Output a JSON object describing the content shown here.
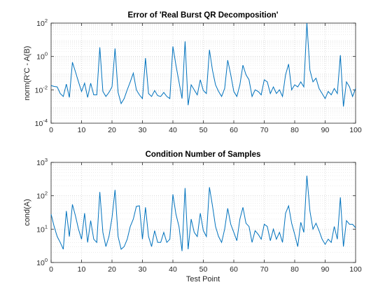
{
  "figure": {
    "background": "#ffffff",
    "line_color": "#0072BD"
  },
  "chart_data": [
    {
      "type": "line",
      "title": "Error of 'Real Burst QR Decomposition'",
      "xlabel": "",
      "ylabel": "norm(R'C - A(B)",
      "xlim": [
        0,
        100
      ],
      "ylim": [
        0.0001,
        100
      ],
      "yscale": "log",
      "grid": true,
      "x_ticks": [
        "0",
        "10",
        "20",
        "30",
        "40",
        "50",
        "60",
        "70",
        "80",
        "90",
        "100"
      ],
      "y_ticks": [
        {
          "base": "10",
          "exp": "-4"
        },
        {
          "base": "10",
          "exp": "-2"
        },
        {
          "base": "10",
          "exp": "0"
        },
        {
          "base": "10",
          "exp": "2"
        }
      ],
      "x": [
        0,
        1,
        2,
        3,
        4,
        5,
        6,
        7,
        8,
        9,
        10,
        11,
        12,
        13,
        14,
        15,
        16,
        17,
        18,
        19,
        20,
        21,
        22,
        23,
        24,
        25,
        26,
        27,
        28,
        29,
        30,
        31,
        32,
        33,
        34,
        35,
        36,
        37,
        38,
        39,
        40,
        41,
        42,
        43,
        44,
        45,
        46,
        47,
        48,
        49,
        50,
        51,
        52,
        53,
        54,
        55,
        56,
        57,
        58,
        59,
        60,
        61,
        62,
        63,
        64,
        65,
        66,
        67,
        68,
        69,
        70,
        71,
        72,
        73,
        74,
        75,
        76,
        77,
        78,
        79,
        80,
        81,
        82,
        83,
        84,
        85,
        86,
        87,
        88,
        89,
        90,
        91,
        92,
        93,
        94,
        95,
        96,
        97,
        98,
        99,
        100
      ],
      "series": [
        {
          "values": [
            0.018,
            0.016,
            0.015,
            0.006,
            0.004,
            0.022,
            0.0035,
            0.45,
            0.12,
            0.03,
            0.008,
            0.025,
            0.0035,
            0.025,
            0.005,
            0.005,
            3.5,
            0.008,
            0.004,
            0.007,
            0.015,
            3.0,
            0.007,
            0.0015,
            0.003,
            0.01,
            0.03,
            0.1,
            0.01,
            0.005,
            0.003,
            0.8,
            0.006,
            0.004,
            0.009,
            0.0045,
            0.004,
            0.007,
            0.004,
            0.003,
            4.0,
            0.3,
            0.03,
            0.003,
            8.0,
            0.0012,
            0.02,
            0.01,
            0.005,
            0.04,
            0.009,
            0.006,
            2.5,
            0.15,
            0.02,
            0.008,
            0.004,
            0.012,
            0.6,
            0.08,
            0.008,
            0.004,
            0.02,
            0.3,
            0.08,
            0.04,
            0.004,
            0.01,
            0.008,
            0.005,
            0.04,
            0.03,
            0.006,
            0.015,
            0.006,
            0.01,
            0.004,
            0.08,
            0.35,
            0.01,
            0.02,
            0.015,
            0.03,
            0.015,
            120.0,
            0.15,
            0.03,
            0.05,
            0.012,
            0.006,
            0.003,
            0.008,
            0.005,
            0.012,
            0.006,
            1.2,
            0.001,
            0.03,
            0.015,
            0.004,
            0.012
          ]
        }
      ]
    },
    {
      "type": "line",
      "title": "Condition Number of Samples",
      "xlabel": "Test Point",
      "ylabel": "cond(A)",
      "xlim": [
        0,
        100
      ],
      "ylim": [
        1,
        1000
      ],
      "yscale": "log",
      "grid": true,
      "x_ticks": [
        "0",
        "10",
        "20",
        "30",
        "40",
        "50",
        "60",
        "70",
        "80",
        "90",
        "100"
      ],
      "y_ticks": [
        {
          "base": "10",
          "exp": "0"
        },
        {
          "base": "10",
          "exp": "1"
        },
        {
          "base": "10",
          "exp": "2"
        },
        {
          "base": "10",
          "exp": "3"
        }
      ],
      "x": [
        0,
        1,
        2,
        3,
        4,
        5,
        6,
        7,
        8,
        9,
        10,
        11,
        12,
        13,
        14,
        15,
        16,
        17,
        18,
        19,
        20,
        21,
        22,
        23,
        24,
        25,
        26,
        27,
        28,
        29,
        30,
        31,
        32,
        33,
        34,
        35,
        36,
        37,
        38,
        39,
        40,
        41,
        42,
        43,
        44,
        45,
        46,
        47,
        48,
        49,
        50,
        51,
        52,
        53,
        54,
        55,
        56,
        57,
        58,
        59,
        60,
        61,
        62,
        63,
        64,
        65,
        66,
        67,
        68,
        69,
        70,
        71,
        72,
        73,
        74,
        75,
        76,
        77,
        78,
        79,
        80,
        81,
        82,
        83,
        84,
        85,
        86,
        87,
        88,
        89,
        90,
        91,
        92,
        93,
        94,
        95,
        96,
        97,
        98,
        99,
        100
      ],
      "series": [
        {
          "values": [
            28,
            12,
            6,
            4,
            2.5,
            35,
            6,
            55,
            25,
            10,
            5,
            30,
            4,
            18,
            5,
            4,
            130,
            8,
            3,
            6,
            22,
            150,
            6,
            2.5,
            3,
            5,
            12,
            20,
            48,
            50,
            5,
            45,
            6,
            3,
            9,
            4,
            4,
            8,
            4,
            5,
            110,
            28,
            12,
            2.2,
            170,
            2.5,
            20,
            8,
            6,
            30,
            9,
            6,
            180,
            50,
            12,
            6,
            4,
            10,
            42,
            14,
            8,
            4.5,
            20,
            45,
            15,
            12,
            4,
            9,
            7,
            5,
            14,
            12,
            4.5,
            10,
            5,
            8,
            4,
            30,
            50,
            15,
            7,
            3,
            16,
            8,
            400,
            35,
            10,
            15,
            9,
            5,
            3.5,
            5,
            4,
            12,
            5,
            90,
            3,
            18,
            14,
            14,
            11
          ]
        }
      ]
    }
  ]
}
